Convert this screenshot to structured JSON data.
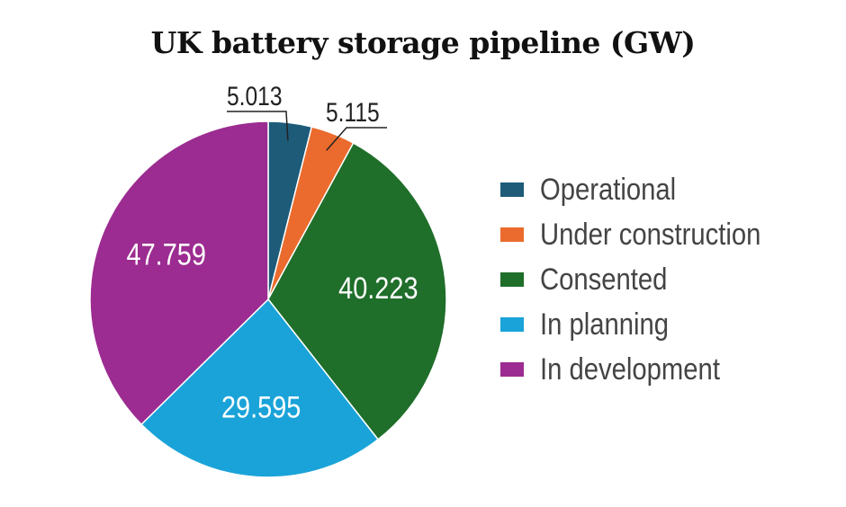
{
  "chart_data": {
    "type": "pie",
    "title": "UK battery storage pipeline (GW)",
    "categories": [
      "Operational",
      "Under construction",
      "Consented",
      "In planning",
      "In development"
    ],
    "values": [
      5.013,
      5.115,
      40.223,
      29.595,
      47.759
    ],
    "value_labels": [
      "5.013",
      "5.115",
      "40.223",
      "29.595",
      "47.759"
    ],
    "colors": [
      "#1d5b79",
      "#ea6b2d",
      "#1f6e2a",
      "#1aa3d9",
      "#9c2c91"
    ],
    "legend_position": "right",
    "start_angle": "12 o'clock",
    "direction": "clockwise"
  }
}
